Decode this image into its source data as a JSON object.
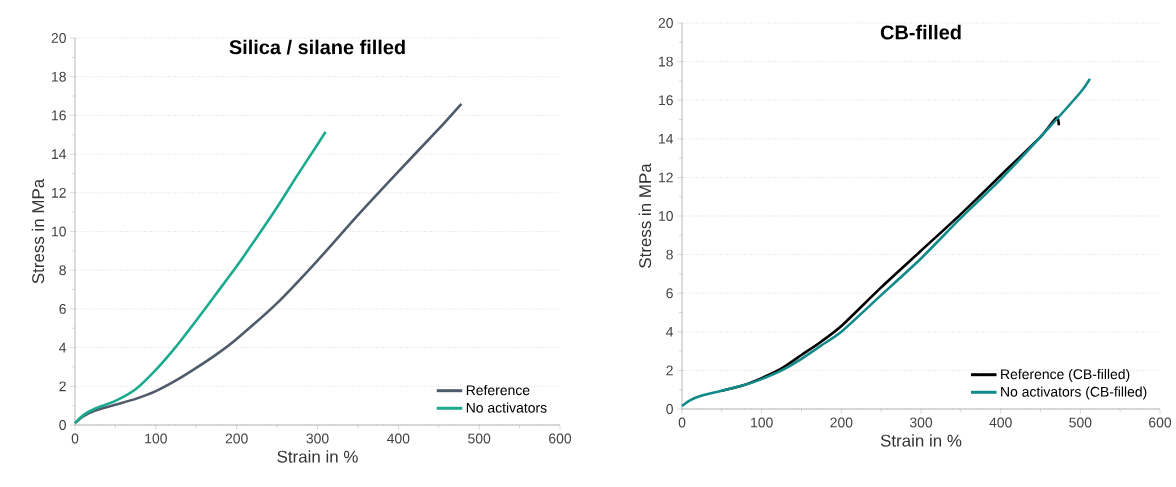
{
  "chart_data": [
    {
      "type": "line",
      "title": "Silica / silane filled",
      "xlabel": "Strain in %",
      "ylabel": "Stress in MPa",
      "xlim": [
        0,
        600
      ],
      "ylim": [
        0,
        20
      ],
      "xticks": [
        0,
        100,
        200,
        300,
        400,
        500,
        600
      ],
      "yticks": [
        0,
        2,
        4,
        6,
        8,
        10,
        12,
        14,
        16,
        18,
        20
      ],
      "grid": "y",
      "legend": "bottom right",
      "marker": "none",
      "line_style": "solid",
      "series": [
        {
          "name": "Reference",
          "color": "#4f5b6b",
          "x": [
            0,
            10,
            25,
            50,
            75,
            100,
            125,
            150,
            175,
            200,
            250,
            300,
            350,
            400,
            450,
            478
          ],
          "values": [
            0.1,
            0.45,
            0.75,
            1.05,
            1.35,
            1.75,
            2.3,
            2.95,
            3.65,
            4.45,
            6.3,
            8.5,
            10.85,
            13.1,
            15.3,
            16.6
          ]
        },
        {
          "name": "No activators",
          "color": "#1aaa8f",
          "x": [
            0,
            10,
            25,
            50,
            75,
            100,
            125,
            150,
            175,
            200,
            225,
            250,
            275,
            300,
            310
          ],
          "values": [
            0.1,
            0.5,
            0.85,
            1.25,
            1.85,
            2.85,
            4.05,
            5.4,
            6.8,
            8.2,
            9.7,
            11.25,
            12.9,
            14.5,
            15.15
          ]
        }
      ]
    },
    {
      "type": "line",
      "title": "CB-filled",
      "xlabel": "Strain in %",
      "ylabel": "Stress in MPa",
      "xlim": [
        0,
        600
      ],
      "ylim": [
        0,
        20
      ],
      "xticks": [
        0,
        100,
        200,
        300,
        400,
        500,
        600
      ],
      "yticks": [
        0,
        2,
        4,
        6,
        8,
        10,
        12,
        14,
        16,
        18,
        20
      ],
      "grid": "y",
      "legend": "bottom right",
      "marker": "none",
      "line_style": "solid",
      "series": [
        {
          "name": "Reference (CB-filled)",
          "color": "#000000",
          "x": [
            50,
            75,
            100,
            125,
            150,
            175,
            200,
            250,
            300,
            350,
            400,
            450,
            470,
            473
          ],
          "values": [
            0.95,
            1.2,
            1.6,
            2.1,
            2.8,
            3.5,
            4.3,
            6.3,
            8.2,
            10.1,
            12.1,
            14.1,
            15.1,
            14.7
          ]
        },
        {
          "name": "No activators (CB-filled)",
          "color": "#138a8a",
          "x": [
            0,
            10,
            25,
            50,
            75,
            100,
            125,
            150,
            175,
            200,
            250,
            300,
            350,
            400,
            450,
            500,
            512
          ],
          "values": [
            0.15,
            0.45,
            0.7,
            0.95,
            1.2,
            1.55,
            2.0,
            2.6,
            3.3,
            4.0,
            5.9,
            7.8,
            9.9,
            11.9,
            14.1,
            16.4,
            17.1
          ]
        }
      ]
    }
  ]
}
